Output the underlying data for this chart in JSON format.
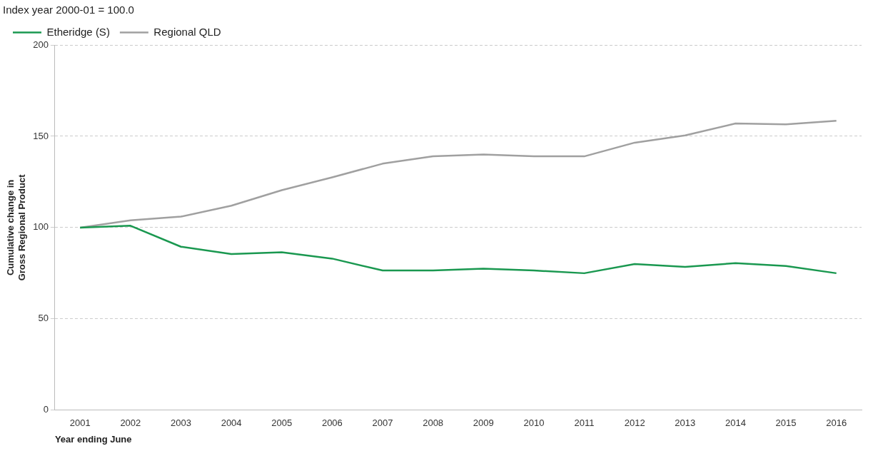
{
  "chart_data": {
    "type": "line",
    "title": "Index year 2000-01 = 100.0",
    "xlabel": "Year ending June",
    "ylabel": "Cumulative change in\nGross Regional Product",
    "categories": [
      "2001",
      "2002",
      "2003",
      "2004",
      "2005",
      "2006",
      "2007",
      "2008",
      "2009",
      "2010",
      "2011",
      "2012",
      "2013",
      "2014",
      "2015",
      "2016"
    ],
    "series": [
      {
        "name": "Etheridge (S)",
        "color": "#1a9850",
        "values": [
          100,
          101,
          89.5,
          85.5,
          86.5,
          83,
          76.5,
          76.5,
          77.5,
          76.5,
          75,
          80,
          78.5,
          80.5,
          79,
          75
        ]
      },
      {
        "name": "Regional QLD",
        "color": "#a0a0a0",
        "values": [
          100,
          104,
          106,
          112,
          120.5,
          127.5,
          135,
          139,
          140,
          139,
          139,
          146.5,
          150.5,
          157,
          156.5,
          158.5
        ]
      }
    ],
    "ylim": [
      0,
      200
    ],
    "yticks": [
      0,
      50,
      100,
      150,
      200
    ],
    "grid": "y",
    "legend": "top left",
    "marker": "none",
    "line_style": "solid"
  }
}
